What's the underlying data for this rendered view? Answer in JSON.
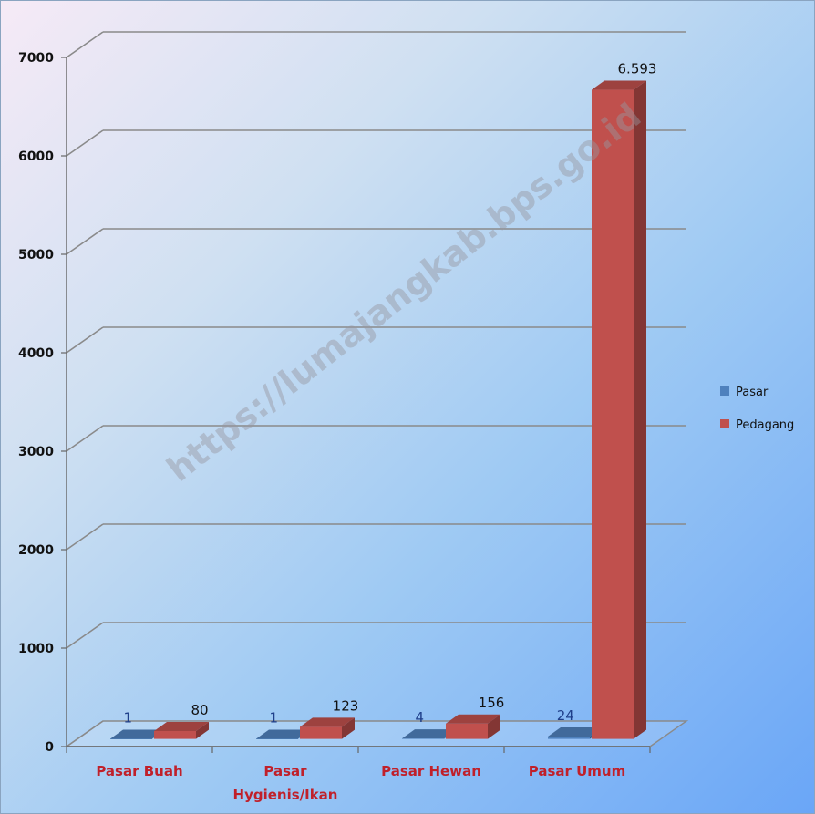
{
  "chart_data": {
    "type": "bar",
    "categories": [
      "Pasar Buah",
      "Pasar Hygienis/Ikan",
      "Pasar Hewan",
      "Pasar Umum"
    ],
    "series": [
      {
        "name": "Pasar",
        "values": [
          1,
          1,
          4,
          24
        ],
        "labels": [
          "1",
          "1",
          "4",
          "24"
        ],
        "color": "#4f81bd"
      },
      {
        "name": "Pedagang",
        "values": [
          80,
          123,
          156,
          6593
        ],
        "labels": [
          "80",
          "123",
          "156",
          "6.593"
        ],
        "color": "#c0504d"
      }
    ],
    "ylim": [
      0,
      7000
    ],
    "yticks": [
      "0",
      "1000",
      "2000",
      "3000",
      "4000",
      "5000",
      "6000",
      "7000"
    ],
    "grid": true,
    "legend_position": "right",
    "category_label_color": "#c0202a"
  },
  "watermark": "https://lumajangkab.bps.go.id"
}
